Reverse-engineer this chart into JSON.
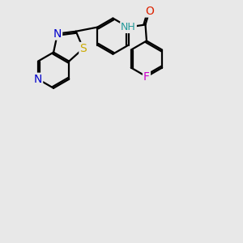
{
  "background_color": "#e8e8e8",
  "atom_colors": {
    "C": "#000000",
    "N": "#0000cc",
    "S": "#ccaa00",
    "O": "#dd2200",
    "F": "#cc00cc",
    "H": "#229999"
  },
  "bond_color": "#000000",
  "bond_width": 1.6,
  "font_size": 9,
  "fig_size": [
    3.0,
    3.0
  ],
  "dpi": 100
}
